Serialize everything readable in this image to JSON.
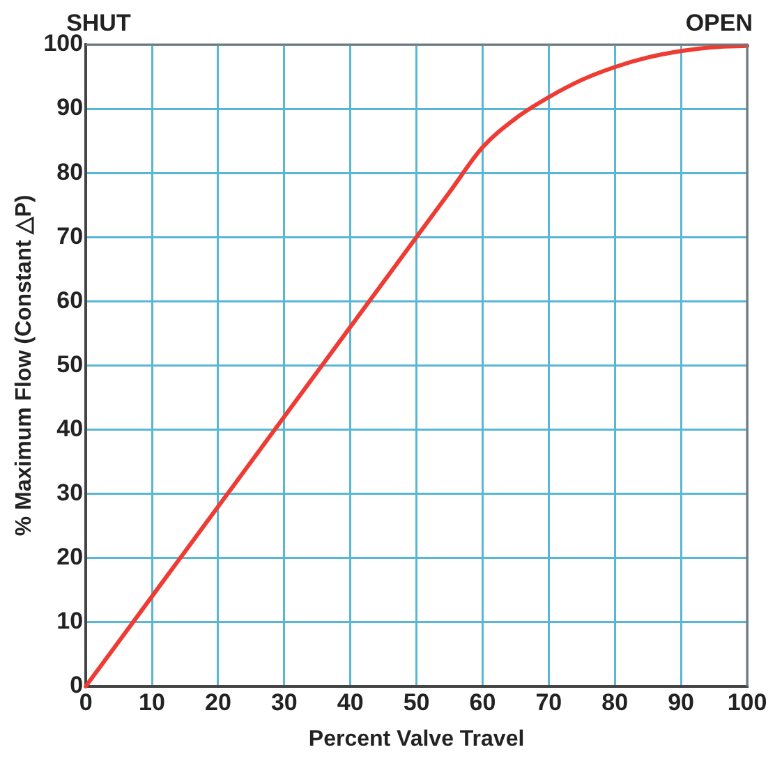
{
  "chart_data": {
    "type": "line",
    "xlabel": "Percent Valve Travel",
    "ylabel": "% Maximum Flow (Constant △P)",
    "annotations": [
      "SHUT",
      "OPEN"
    ],
    "x": [
      0,
      10,
      20,
      30,
      40,
      50,
      55,
      60,
      65,
      70,
      75,
      80,
      85,
      90,
      95,
      100
    ],
    "series": [
      {
        "color": "#ee3b33",
        "values": [
          0,
          14,
          28,
          42,
          56,
          70,
          77,
          84,
          88.5,
          91.8,
          94.5,
          96.5,
          98,
          99,
          99.6,
          99.8
        ]
      }
    ],
    "xlim": [
      0,
      100
    ],
    "ylim": [
      0,
      100
    ],
    "xticks": [
      0,
      10,
      20,
      30,
      40,
      50,
      60,
      70,
      80,
      90,
      100
    ],
    "yticks": [
      0,
      10,
      20,
      30,
      40,
      50,
      60,
      70,
      80,
      90,
      100
    ],
    "grid": true,
    "legend": false,
    "marker": "none",
    "line_style": "solid"
  }
}
